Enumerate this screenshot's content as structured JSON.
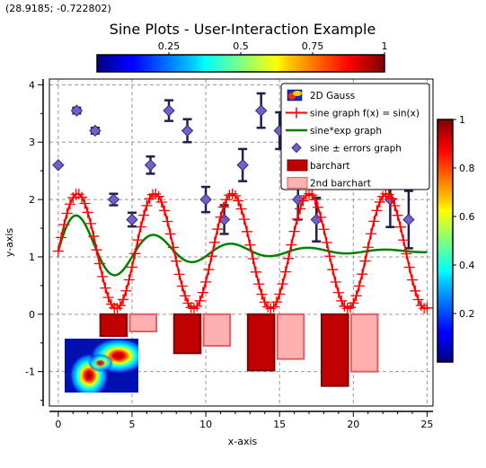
{
  "coordinate_readout": "(28.9185; -0.722802)",
  "colors": {
    "sine": "#ff0000",
    "sine_exp": "#008000",
    "errors_marker": "#7060d0",
    "errors_bar": "#20204a",
    "bar1_fill": "#c00000",
    "bar1_edge": "#800000",
    "bar2_fill": "#ffb0b0",
    "bar2_edge": "#e06060",
    "grid": "#999999"
  },
  "chart_data": {
    "type": "line",
    "title": "Sine Plots - User-Interaction Example",
    "xlabel": "x-axis",
    "ylabel": "y-axis",
    "xlim": [
      -0.6,
      25.4
    ],
    "ylim": [
      -1.6,
      4.1
    ],
    "xticks": [
      "0",
      "5",
      "10",
      "15",
      "20",
      "25"
    ],
    "yticks": [
      "-1",
      "0",
      "1",
      "2",
      "3",
      "4"
    ],
    "grid": true,
    "legend_placement": "top-right",
    "legend": [
      {
        "label": "2D Gauss",
        "kind": "image"
      },
      {
        "label": "sine graph f(x) = sin(x)",
        "kind": "sine"
      },
      {
        "label": "sine*exp graph",
        "kind": "sineexp"
      },
      {
        "label": "sine ± errors graph",
        "kind": "errors"
      },
      {
        "label": "barchart",
        "kind": "bar1"
      },
      {
        "label": "2nd barchart",
        "kind": "bar2"
      }
    ],
    "series": [
      {
        "name": "sine graph",
        "formula": "1.1 + sin(1.2x)",
        "x_range": [
          0,
          25
        ],
        "step": 0.2
      },
      {
        "name": "sine*exp graph",
        "formula": "1.1 + 0.75*exp(-0.15x)*sin(1.2x)",
        "x_range": [
          0,
          25
        ]
      },
      {
        "name": "sine ± errors graph",
        "points": [
          {
            "x": 0.0,
            "y": 2.6,
            "err": 0.0
          },
          {
            "x": 1.25,
            "y": 3.55,
            "err": 0.05
          },
          {
            "x": 2.5,
            "y": 3.2,
            "err": 0.05
          },
          {
            "x": 3.75,
            "y": 2.0,
            "err": 0.1
          },
          {
            "x": 5.0,
            "y": 1.65,
            "err": 0.12
          },
          {
            "x": 6.25,
            "y": 2.6,
            "err": 0.15
          },
          {
            "x": 7.5,
            "y": 3.55,
            "err": 0.18
          },
          {
            "x": 8.75,
            "y": 3.2,
            "err": 0.2
          },
          {
            "x": 10.0,
            "y": 2.0,
            "err": 0.22
          },
          {
            "x": 11.25,
            "y": 1.65,
            "err": 0.25
          },
          {
            "x": 12.5,
            "y": 2.6,
            "err": 0.28
          },
          {
            "x": 13.75,
            "y": 3.55,
            "err": 0.3
          },
          {
            "x": 15.0,
            "y": 3.2,
            "err": 0.32
          },
          {
            "x": 16.25,
            "y": 2.0,
            "err": 0.35
          },
          {
            "x": 17.5,
            "y": 1.65,
            "err": 0.38
          },
          {
            "x": 18.75,
            "y": 2.6,
            "err": 0.4
          },
          {
            "x": 20.0,
            "y": 3.55,
            "err": 0.42
          },
          {
            "x": 21.25,
            "y": 3.2,
            "err": 0.45
          },
          {
            "x": 22.5,
            "y": 2.0,
            "err": 0.48
          },
          {
            "x": 23.75,
            "y": 1.65,
            "err": 0.5
          }
        ]
      },
      {
        "name": "barchart",
        "x": [
          3.75,
          8.75,
          13.75,
          18.75
        ],
        "values": [
          -0.38,
          -0.68,
          -0.98,
          -1.25
        ],
        "width": 1.8
      },
      {
        "name": "2nd barchart",
        "x": [
          5.75,
          10.75,
          15.75,
          20.75
        ],
        "values": [
          -0.3,
          -0.55,
          -0.78,
          -1.0
        ],
        "width": 1.8
      }
    ],
    "colorbar_top": {
      "ticks": [
        "0.25",
        "0.5",
        "0.75",
        "1"
      ],
      "range": [
        0,
        1
      ]
    },
    "colorbar_right": {
      "ticks": [
        "0.2",
        "0.4",
        "0.6",
        "0.8",
        "1"
      ],
      "range": [
        0,
        1
      ]
    }
  }
}
